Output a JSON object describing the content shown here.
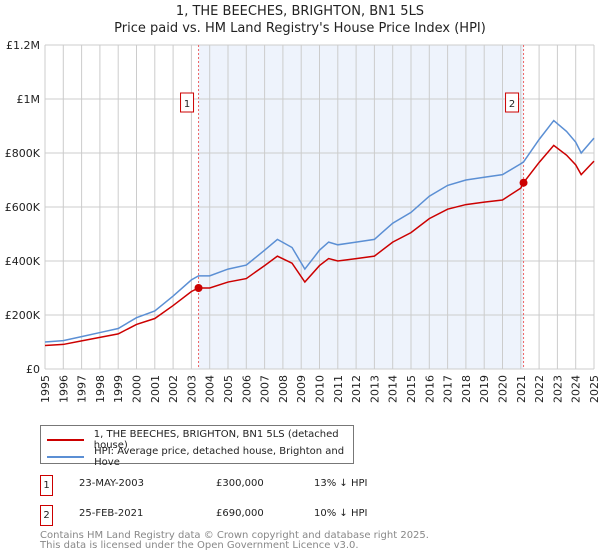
{
  "chart_data": {
    "type": "line",
    "title": "1, THE BEECHES, BRIGHTON, BN1 5LS",
    "subtitle": "Price paid vs. HM Land Registry's House Price Index (HPI)",
    "xlim": [
      1995,
      2025
    ],
    "ylim": [
      0,
      1200000
    ],
    "y_ticks": [
      {
        "v": 0,
        "label": "£0"
      },
      {
        "v": 200000,
        "label": "£200K"
      },
      {
        "v": 400000,
        "label": "£400K"
      },
      {
        "v": 600000,
        "label": "£600K"
      },
      {
        "v": 800000,
        "label": "£800K"
      },
      {
        "v": 1000000,
        "label": "£1M"
      },
      {
        "v": 1200000,
        "label": "£1.2M"
      }
    ],
    "x_ticks": [
      "1995",
      "1996",
      "1997",
      "1998",
      "1999",
      "2000",
      "2001",
      "2002",
      "2003",
      "2004",
      "2005",
      "2006",
      "2007",
      "2008",
      "2009",
      "2010",
      "2011",
      "2012",
      "2013",
      "2014",
      "2015",
      "2016",
      "2017",
      "2018",
      "2019",
      "2020",
      "2021",
      "2022",
      "2023",
      "2024",
      "2025"
    ],
    "grid": true,
    "series": [
      {
        "name": "1, THE BEECHES, BRIGHTON, BN1 5LS (detached house)",
        "color": "#cc0000",
        "x": [
          1995,
          1996,
          1997,
          1998,
          1999,
          2000,
          2001,
          2002,
          2003,
          2003.39,
          2004,
          2005,
          2006,
          2007,
          2007.7,
          2008.5,
          2009.2,
          2010,
          2010.5,
          2011,
          2012,
          2013,
          2014,
          2015,
          2016,
          2017,
          2018,
          2019,
          2020,
          2021,
          2021.15,
          2022,
          2022.8,
          2023.5,
          2024,
          2024.3,
          2025
        ],
        "y": [
          87000,
          91000,
          104000,
          117000,
          130000,
          165000,
          187000,
          235000,
          287000,
          300000,
          300000,
          322000,
          335000,
          383000,
          418000,
          392000,
          322000,
          383000,
          409000,
          400000,
          409000,
          418000,
          470000,
          505000,
          557000,
          592000,
          609000,
          618000,
          626000,
          670000,
          690000,
          765000,
          828000,
          792000,
          756000,
          720000,
          770000
        ]
      },
      {
        "name": "HPI: Average price, detached house, Brighton and Hove",
        "color": "#5b8fd4",
        "x": [
          1995,
          1996,
          1997,
          1998,
          1999,
          2000,
          2001,
          2002,
          2003,
          2003.39,
          2004,
          2005,
          2006,
          2007,
          2007.7,
          2008.5,
          2009.2,
          2010,
          2010.5,
          2011,
          2012,
          2013,
          2014,
          2015,
          2016,
          2017,
          2018,
          2019,
          2020,
          2021,
          2021.15,
          2022,
          2022.8,
          2023.5,
          2024,
          2024.3,
          2025
        ],
        "y": [
          100000,
          105000,
          120000,
          135000,
          150000,
          190000,
          215000,
          270000,
          330000,
          345000,
          345000,
          370000,
          385000,
          440000,
          480000,
          450000,
          370000,
          440000,
          470000,
          460000,
          470000,
          480000,
          540000,
          580000,
          640000,
          680000,
          700000,
          710000,
          720000,
          760000,
          767000,
          850000,
          920000,
          880000,
          840000,
          800000,
          855000
        ]
      }
    ],
    "sales": [
      {
        "label": "1",
        "x": 2003.39,
        "y": 300000
      },
      {
        "label": "2",
        "x": 2021.15,
        "y": 690000
      }
    ]
  },
  "transactions": [
    {
      "num": "1",
      "date": "23-MAY-2003",
      "price": "£300,000",
      "hpi": "13% ↓ HPI"
    },
    {
      "num": "2",
      "date": "25-FEB-2021",
      "price": "£690,000",
      "hpi": "10% ↓ HPI"
    }
  ],
  "footer": {
    "line1": "Contains HM Land Registry data © Crown copyright and database right 2025.",
    "line2": "This data is licensed under the Open Government Licence v3.0."
  }
}
